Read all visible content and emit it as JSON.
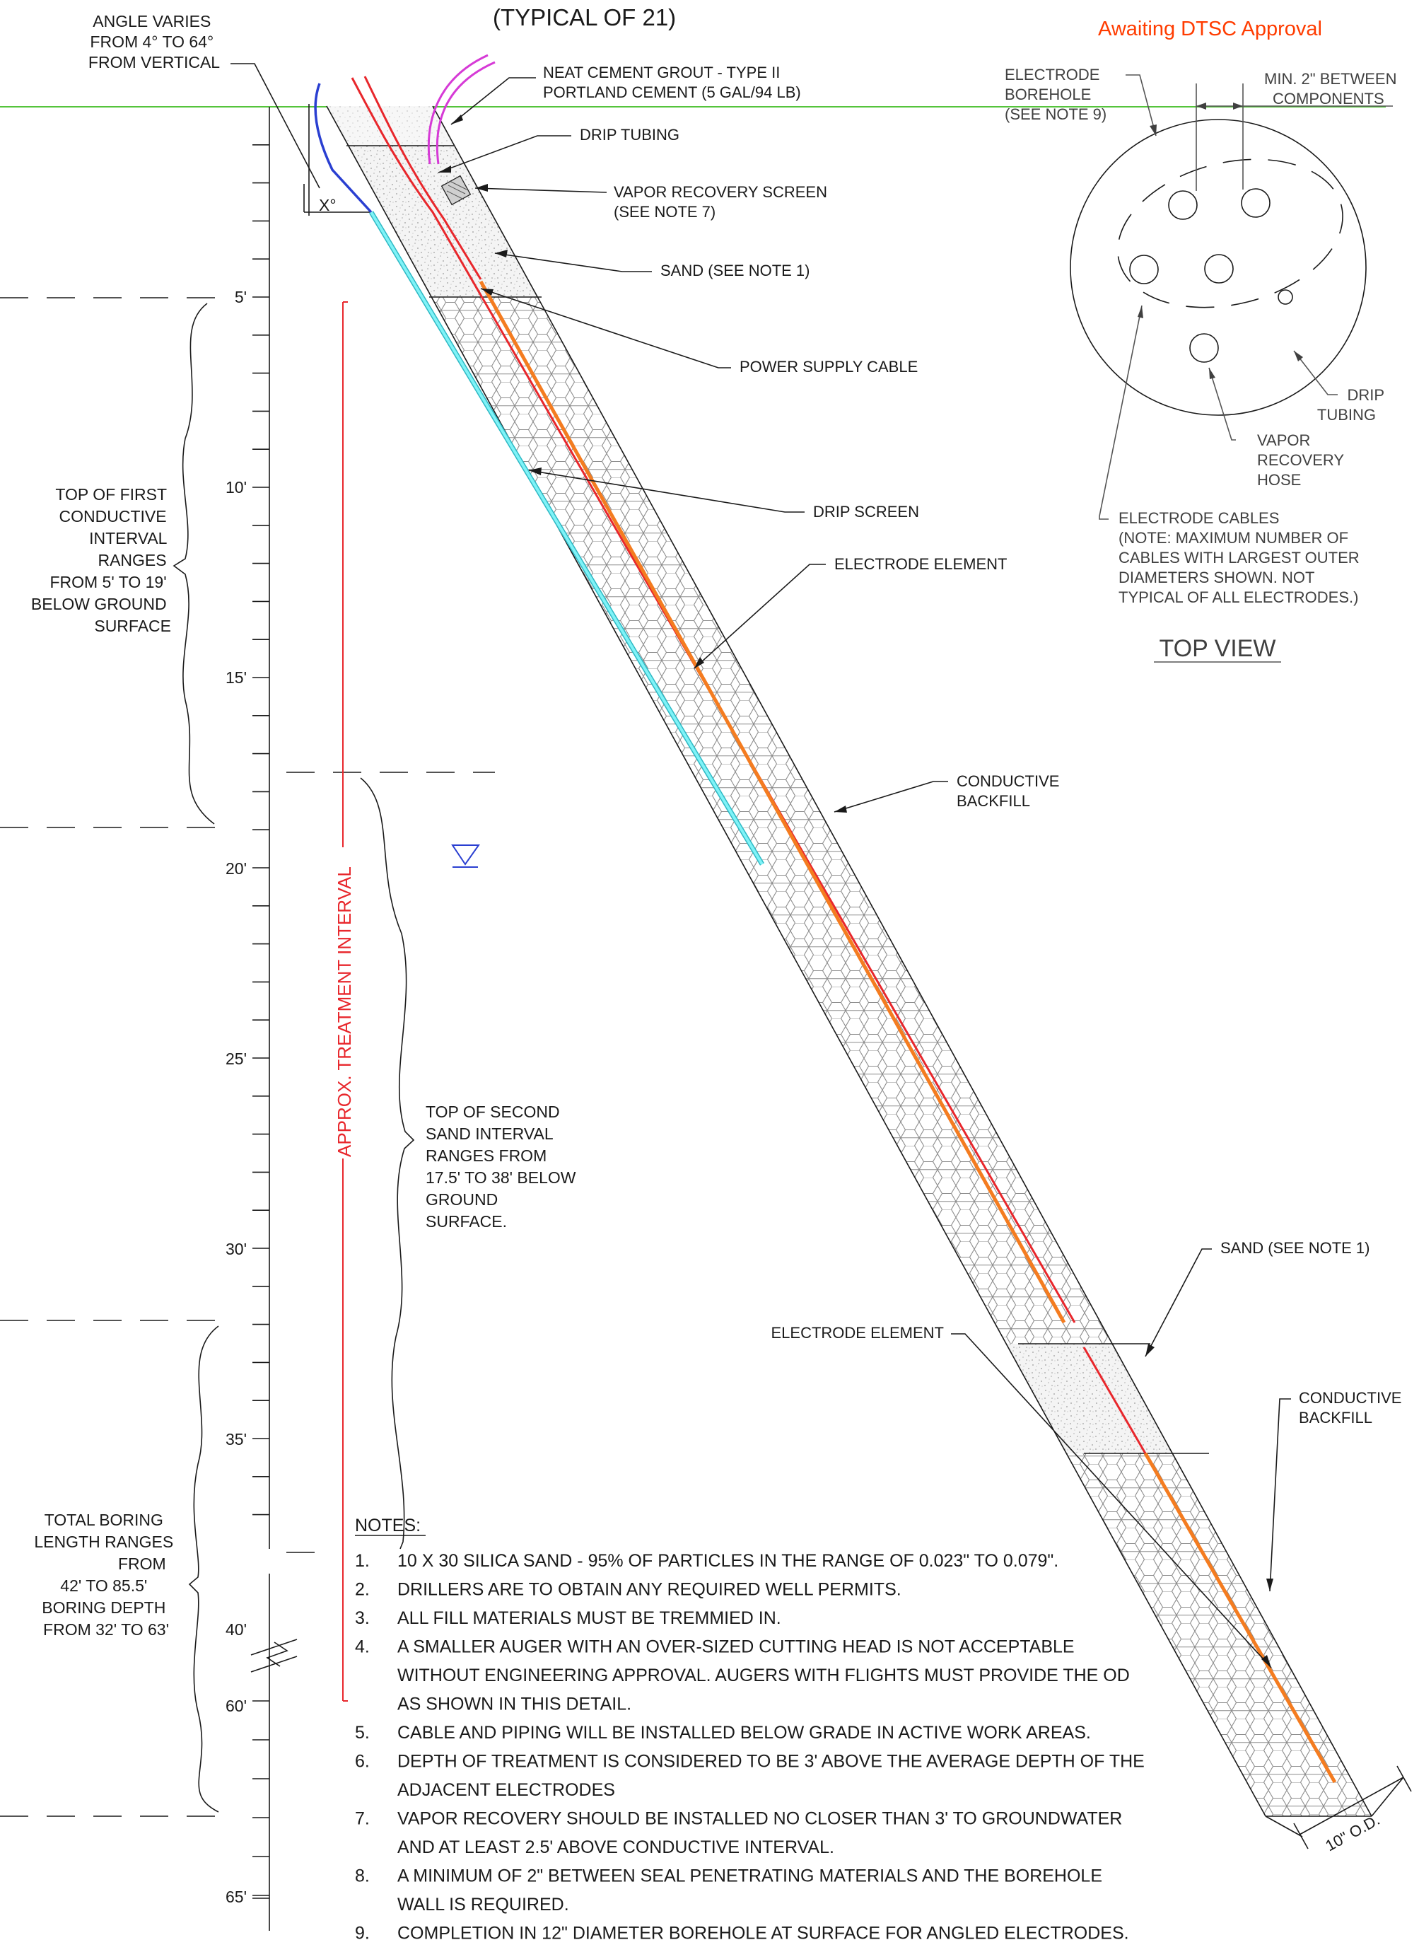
{
  "header": {
    "typical": "(TYPICAL OF 21)",
    "status": "Awaiting DTSC Approval"
  },
  "angle_note": [
    "ANGLE VARIES",
    "FROM 4° TO 64°",
    "FROM VERTICAL"
  ],
  "angle_symbol": "X°",
  "depth_scale": {
    "labels": [
      "5'",
      "10'",
      "15'",
      "20'",
      "25'",
      "30'",
      "35'",
      "40'",
      "60'",
      "65'"
    ]
  },
  "callouts": {
    "grout": [
      "NEAT CEMENT GROUT - TYPE II",
      "PORTLAND CEMENT (5 GAL/94 LB)"
    ],
    "drip_tubing": "DRIP TUBING",
    "vapor_screen": [
      "VAPOR RECOVERY SCREEN",
      "(SEE NOTE 7)"
    ],
    "sand_top": "SAND (SEE NOTE 1)",
    "power_cable": "POWER SUPPLY CABLE",
    "drip_screen": "DRIP SCREEN",
    "electrode_element_1": "ELECTRODE ELEMENT",
    "conductive_backfill_1": [
      "CONDUCTIVE",
      "BACKFILL"
    ],
    "sand_bottom": "SAND (SEE NOTE 1)",
    "electrode_element_2": "ELECTRODE ELEMENT",
    "conductive_backfill_2": [
      "CONDUCTIVE",
      "BACKFILL"
    ],
    "outer_diameter": "10\" O.D."
  },
  "side_notes": {
    "first_interval": [
      "TOP OF FIRST",
      "CONDUCTIVE",
      "INTERVAL",
      "RANGES",
      "FROM 5' TO 19'",
      "BELOW GROUND",
      "SURFACE"
    ],
    "second_interval": [
      "TOP OF SECOND",
      "SAND INTERVAL",
      "RANGES FROM",
      "17.5' TO 38' BELOW",
      "GROUND",
      "SURFACE."
    ],
    "total_boring": [
      "TOTAL BORING",
      "LENGTH RANGES",
      "FROM",
      "42' TO 85.5'",
      "BORING DEPTH",
      "FROM 32' TO 63'"
    ],
    "treatment": "APPROX. TREATMENT INTERVAL"
  },
  "top_view": {
    "title": "TOP VIEW",
    "borehole": [
      "ELECTRODE",
      "BOREHOLE",
      "(SEE NOTE 9)"
    ],
    "min_between": [
      "MIN. 2\" BETWEEN",
      "COMPONENTS"
    ],
    "drip_tubing": [
      "DRIP",
      "TUBING"
    ],
    "vapor_hose": [
      "VAPOR",
      "RECOVERY",
      "HOSE"
    ],
    "electrode_cables": [
      "ELECTRODE CABLES",
      "(NOTE: MAXIMUM NUMBER OF",
      "CABLES WITH LARGEST OUTER",
      "DIAMETERS SHOWN. NOT",
      "TYPICAL OF ALL ELECTRODES.)"
    ]
  },
  "notes": {
    "heading": "NOTES:",
    "items": [
      {
        "num": "1.",
        "lines": [
          "10 X 30 SILICA SAND - 95% OF PARTICLES IN THE RANGE OF 0.023\" TO 0.079\"."
        ]
      },
      {
        "num": "2.",
        "lines": [
          "DRILLERS ARE TO OBTAIN ANY REQUIRED WELL PERMITS."
        ]
      },
      {
        "num": "3.",
        "lines": [
          "ALL FILL MATERIALS MUST BE TREMMIED IN."
        ]
      },
      {
        "num": "4.",
        "lines": [
          "A SMALLER AUGER WITH AN OVER-SIZED CUTTING HEAD IS NOT ACCEPTABLE",
          "WITHOUT ENGINEERING APPROVAL.  AUGERS WITH FLIGHTS MUST PROVIDE THE OD",
          "AS SHOWN IN THIS DETAIL."
        ]
      },
      {
        "num": "5.",
        "lines": [
          "CABLE AND PIPING WILL BE INSTALLED BELOW GRADE IN ACTIVE WORK AREAS."
        ]
      },
      {
        "num": "6.",
        "lines": [
          "DEPTH OF TREATMENT IS CONSIDERED TO BE 3' ABOVE THE AVERAGE DEPTH OF THE",
          "ADJACENT ELECTRODES"
        ]
      },
      {
        "num": "7.",
        "lines": [
          "VAPOR RECOVERY SHOULD BE INSTALLED NO CLOSER THAN 3' TO GROUNDWATER",
          "AND AT LEAST 2.5' ABOVE CONDUCTIVE INTERVAL."
        ]
      },
      {
        "num": "8.",
        "lines": [
          "A MINIMUM OF 2\" BETWEEN SEAL PENETRATING MATERIALS AND THE BOREHOLE",
          "WALL IS REQUIRED."
        ]
      },
      {
        "num": "9.",
        "lines": [
          "COMPLETION IN 12\" DIAMETER BOREHOLE AT SURFACE FOR ANGLED ELECTRODES."
        ]
      }
    ]
  },
  "colors": {
    "ground_line": "#55c43b",
    "power_cable": "#e8272c",
    "electrode": "#f47c20",
    "drip": "#3fe0e8",
    "blue_tube": "#2a3fd1",
    "magenta_tube": "#d63ad6",
    "water_table": "#2a3fd1"
  }
}
